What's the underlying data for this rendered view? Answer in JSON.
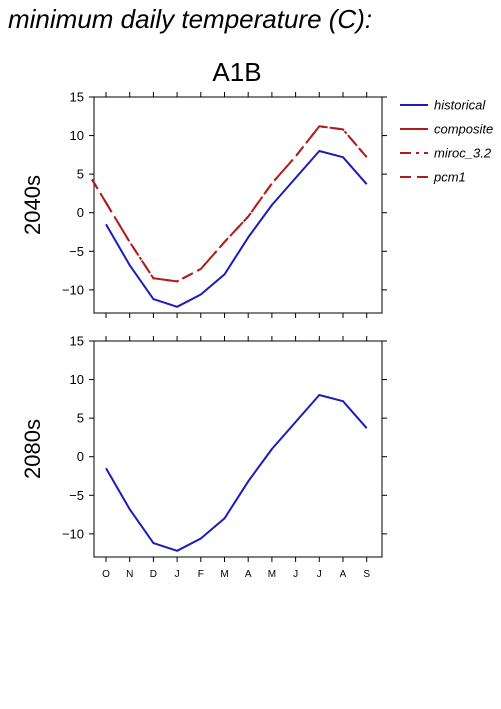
{
  "title": "minimum daily temperature (C):",
  "scenario": "A1B",
  "colors": {
    "historical": "#1c1cb8",
    "composite": "#b01c1c",
    "miroc_3.2": "#b01c1c",
    "pcm1": "#b01c1c"
  },
  "legend": [
    {
      "label": "historical",
      "style": "solid",
      "color": "#1c1cb8"
    },
    {
      "label": "composite",
      "style": "solid",
      "color": "#b01c1c"
    },
    {
      "label": "miroc_3.2",
      "style": "dashdot",
      "color": "#b01c1c"
    },
    {
      "label": "pcm1",
      "style": "dashed",
      "color": "#b01c1c"
    }
  ],
  "chart_data": [
    {
      "type": "line",
      "row_label": "2040s",
      "categories": [
        "O",
        "N",
        "D",
        "J",
        "F",
        "M",
        "A",
        "M",
        "J",
        "J",
        "A",
        "S"
      ],
      "ylim": [
        -13,
        15
      ],
      "yticks": [
        -10,
        -5,
        0,
        5,
        10,
        15
      ],
      "series": [
        {
          "name": "historical",
          "style": "solid",
          "values": [
            -1.5,
            -6.8,
            -11.2,
            -12.2,
            -10.6,
            -8.0,
            -3.2,
            1.0,
            4.5,
            8.0,
            7.2,
            3.7
          ]
        },
        {
          "name": "miroc_3.2",
          "style": "dashdot",
          "values": [
            1.3,
            -3.8,
            -8.5,
            -8.9,
            -7.3,
            -3.8,
            -0.5,
            3.8,
            7.3,
            11.2,
            10.8,
            7.2
          ]
        },
        {
          "name": "pcm1",
          "style": "dashed",
          "values": [
            1.3,
            -3.8,
            -8.5,
            -8.9,
            -7.3,
            -3.8,
            -0.5,
            3.8,
            7.3,
            11.2,
            10.8,
            7.2
          ]
        }
      ]
    },
    {
      "type": "line",
      "row_label": "2080s",
      "categories": [
        "O",
        "N",
        "D",
        "J",
        "F",
        "M",
        "A",
        "M",
        "J",
        "J",
        "A",
        "S"
      ],
      "ylim": [
        -13,
        15
      ],
      "yticks": [
        -10,
        -5,
        0,
        5,
        10,
        15
      ],
      "series": [
        {
          "name": "historical",
          "style": "solid",
          "values": [
            -1.5,
            -6.8,
            -11.2,
            -12.2,
            -10.6,
            -8.0,
            -3.2,
            1.0,
            4.5,
            8.0,
            7.2,
            3.7
          ]
        }
      ]
    }
  ]
}
